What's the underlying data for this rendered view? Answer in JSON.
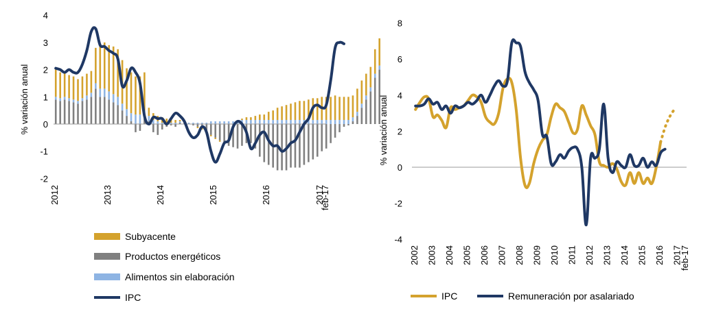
{
  "chart_data": [
    {
      "type": "bar",
      "ylabel": "% variación anual",
      "ylim": [
        -2,
        4
      ],
      "yticks": [
        "4",
        "3",
        "2",
        "1",
        "0",
        "-1",
        "-2"
      ],
      "xticks": [
        "2012",
        "2013",
        "2014",
        "2015",
        "2016",
        "2017",
        "feb-17"
      ],
      "x_start_month": "2012-01",
      "legend_position": "bottom",
      "grid": false,
      "series": [
        {
          "name": "Subyacente",
          "kind": "bar",
          "color": "#D4A22D",
          "values": [
            1.0,
            0.95,
            0.9,
            0.85,
            0.85,
            0.8,
            0.8,
            0.8,
            0.8,
            1.3,
            1.6,
            1.7,
            1.7,
            1.75,
            1.75,
            1.6,
            1.5,
            1.5,
            1.4,
            1.4,
            1.4,
            0.3,
            0.25,
            0.2,
            0.2,
            0.15,
            0.1,
            0.1,
            0.05,
            0.0,
            0.0,
            0.0,
            -0.05,
            -0.05,
            -0.05,
            -0.05,
            -0.05,
            -0.05,
            0.0,
            0.0,
            0.0,
            0.0,
            0.05,
            0.1,
            0.1,
            0.15,
            0.2,
            0.2,
            0.3,
            0.35,
            0.45,
            0.5,
            0.55,
            0.6,
            0.65,
            0.7,
            0.7,
            0.75,
            0.8,
            0.8,
            0.85,
            0.85,
            0.85,
            0.9,
            0.85,
            0.85,
            0.85,
            0.8,
            0.85,
            0.85,
            0.8,
            0.75,
            0.9,
            1.0
          ]
        },
        {
          "name": "Productos energéticos",
          "kind": "bar",
          "color": "#808080",
          "values": [
            0.9,
            0.85,
            0.9,
            0.85,
            0.8,
            0.75,
            0.85,
            0.9,
            1.0,
            1.3,
            1.0,
            1.0,
            0.9,
            0.8,
            0.7,
            0.5,
            0.3,
            0.1,
            -0.3,
            -0.25,
            0.2,
            0.1,
            -0.3,
            -0.4,
            -0.2,
            -0.1,
            -0.05,
            -0.1,
            0.05,
            0.1,
            0.0,
            -0.05,
            -0.1,
            -0.15,
            -0.25,
            -0.4,
            -0.5,
            -0.6,
            -0.7,
            -0.8,
            -0.85,
            -0.9,
            -0.8,
            -0.7,
            -0.7,
            -0.9,
            -1.2,
            -1.4,
            -1.5,
            -1.6,
            -1.7,
            -1.7,
            -1.7,
            -1.6,
            -1.6,
            -1.6,
            -1.5,
            -1.4,
            -1.3,
            -1.2,
            -1.0,
            -0.9,
            -0.7,
            -0.5,
            -0.3,
            -0.1,
            -0.05,
            0.1,
            0.3,
            0.6,
            0.9,
            1.2,
            1.7,
            2.0
          ]
        },
        {
          "name": "Alimentos sin elaboración",
          "kind": "bar",
          "color": "#8EB4E3",
          "values": [
            0.1,
            0.1,
            0.1,
            0.1,
            0.1,
            0.1,
            0.1,
            0.15,
            0.15,
            0.2,
            0.3,
            0.3,
            0.3,
            0.3,
            0.3,
            0.25,
            0.25,
            0.3,
            0.35,
            0.35,
            0.3,
            0.2,
            0.15,
            0.1,
            0.05,
            0.05,
            0.05,
            0.05,
            0.05,
            0.05,
            0.05,
            0.05,
            0.05,
            0.05,
            0.05,
            0.1,
            0.1,
            0.1,
            0.1,
            0.1,
            0.1,
            0.1,
            0.15,
            0.15,
            0.15,
            0.15,
            0.15,
            0.15,
            0.15,
            0.15,
            0.15,
            0.15,
            0.15,
            0.15,
            0.15,
            0.15,
            0.15,
            0.15,
            0.15,
            0.15,
            0.15,
            0.15,
            0.15,
            0.15,
            0.15,
            0.15,
            0.15,
            0.15,
            0.15,
            0.15,
            0.15,
            0.15,
            0.15,
            0.15
          ]
        },
        {
          "name": "IPC",
          "kind": "line",
          "color": "#1F3864",
          "values": [
            2.05,
            2.0,
            1.9,
            2.0,
            1.9,
            1.9,
            2.2,
            2.7,
            3.4,
            3.5,
            2.9,
            2.85,
            2.7,
            2.6,
            2.4,
            1.4,
            1.6,
            2.05,
            1.9,
            1.5,
            0.3,
            0.0,
            0.25,
            0.2,
            0.2,
            0.0,
            0.2,
            0.4,
            0.3,
            0.1,
            -0.3,
            -0.5,
            -0.4,
            -0.1,
            -0.3,
            -1.0,
            -1.4,
            -1.1,
            -0.7,
            -0.6,
            -0.1,
            0.1,
            0.0,
            -0.3,
            -0.9,
            -0.7,
            -0.4,
            -0.3,
            -0.6,
            -0.8,
            -0.8,
            -1.0,
            -0.9,
            -0.7,
            -0.6,
            -0.3,
            0.0,
            0.2,
            0.6,
            0.7,
            0.6,
            0.7,
            1.6,
            2.8,
            3.0,
            2.95
          ]
        }
      ]
    },
    {
      "type": "line",
      "ylabel": "% variación anual",
      "ylim": [
        -4,
        8
      ],
      "yticks": [
        "8",
        "6",
        "4",
        "2",
        "0",
        "-2",
        "-4"
      ],
      "xticks": [
        "2002",
        "2003",
        "2004",
        "2005",
        "2006",
        "2007",
        "2008",
        "2009",
        "2010",
        "2011",
        "2012",
        "2013",
        "2014",
        "2015",
        "2016",
        "2017",
        "feb-17"
      ],
      "x_start_quarter": "2002-Q1",
      "legend_position": "bottom",
      "grid": false,
      "series": [
        {
          "name": "IPC",
          "color": "#D4A22D",
          "values": [
            3.2,
            3.6,
            3.9,
            3.8,
            2.8,
            2.9,
            2.6,
            2.2,
            3.3,
            3.2,
            3.3,
            3.4,
            3.7,
            4.0,
            3.9,
            3.6,
            2.8,
            2.5,
            2.4,
            3.0,
            4.4,
            4.9,
            4.7,
            3.2,
            0.5,
            -1.0,
            -0.9,
            0.2,
            1.0,
            1.5,
            1.8,
            2.8,
            3.5,
            3.3,
            3.1,
            2.5,
            1.9,
            2.1,
            3.4,
            2.9,
            2.3,
            1.8,
            0.3,
            0.1,
            0.0,
            0.2,
            -0.1,
            -0.8,
            -1.0,
            -0.3,
            -0.9,
            -0.3,
            -0.9,
            -0.6,
            -0.9,
            0.0,
            1.4
          ],
          "forecast_values": [
            1.4,
            2.3,
            2.9,
            3.3
          ]
        },
        {
          "name": "Remuneración por asalariado",
          "color": "#1F3864",
          "values": [
            3.4,
            3.4,
            3.5,
            3.8,
            3.5,
            3.6,
            3.2,
            3.4,
            3.0,
            3.4,
            3.3,
            3.4,
            3.6,
            3.5,
            3.7,
            4.0,
            3.6,
            4.0,
            4.5,
            4.8,
            4.5,
            4.8,
            6.9,
            6.9,
            6.7,
            5.3,
            4.7,
            4.3,
            3.7,
            1.8,
            1.7,
            0.2,
            0.3,
            0.7,
            0.5,
            0.9,
            1.1,
            1.0,
            0.0,
            -3.2,
            0.5,
            0.5,
            1.0,
            3.5,
            0.5,
            -0.3,
            0.3,
            0.1,
            0.0,
            0.7,
            0.1,
            0.1,
            0.5,
            0.0,
            0.3,
            0.1,
            0.8,
            1.0
          ]
        }
      ]
    }
  ]
}
